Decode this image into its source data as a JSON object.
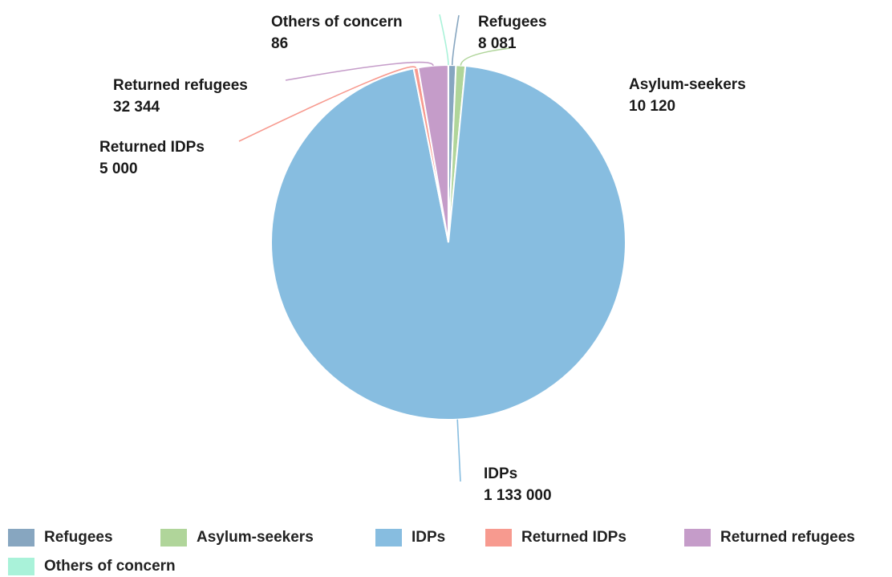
{
  "chart_data": {
    "type": "pie",
    "title": "",
    "series": [
      {
        "name": "Refugees",
        "value": 8081,
        "value_label": "8 081",
        "color": "#87a6c0"
      },
      {
        "name": "Asylum-seekers",
        "value": 10120,
        "value_label": "10 120",
        "color": "#b0d59a"
      },
      {
        "name": "IDPs",
        "value": 1133000,
        "value_label": "1 133 000",
        "color": "#87bde0"
      },
      {
        "name": "Returned IDPs",
        "value": 5000,
        "value_label": "5 000",
        "color": "#f79a8f"
      },
      {
        "name": "Returned refugees",
        "value": 32344,
        "value_label": "32 344",
        "color": "#c59cc9"
      },
      {
        "name": "Others of concern",
        "value": 86,
        "value_label": "86",
        "color": "#a9f2d9"
      }
    ],
    "legend_placement": "bottom"
  }
}
